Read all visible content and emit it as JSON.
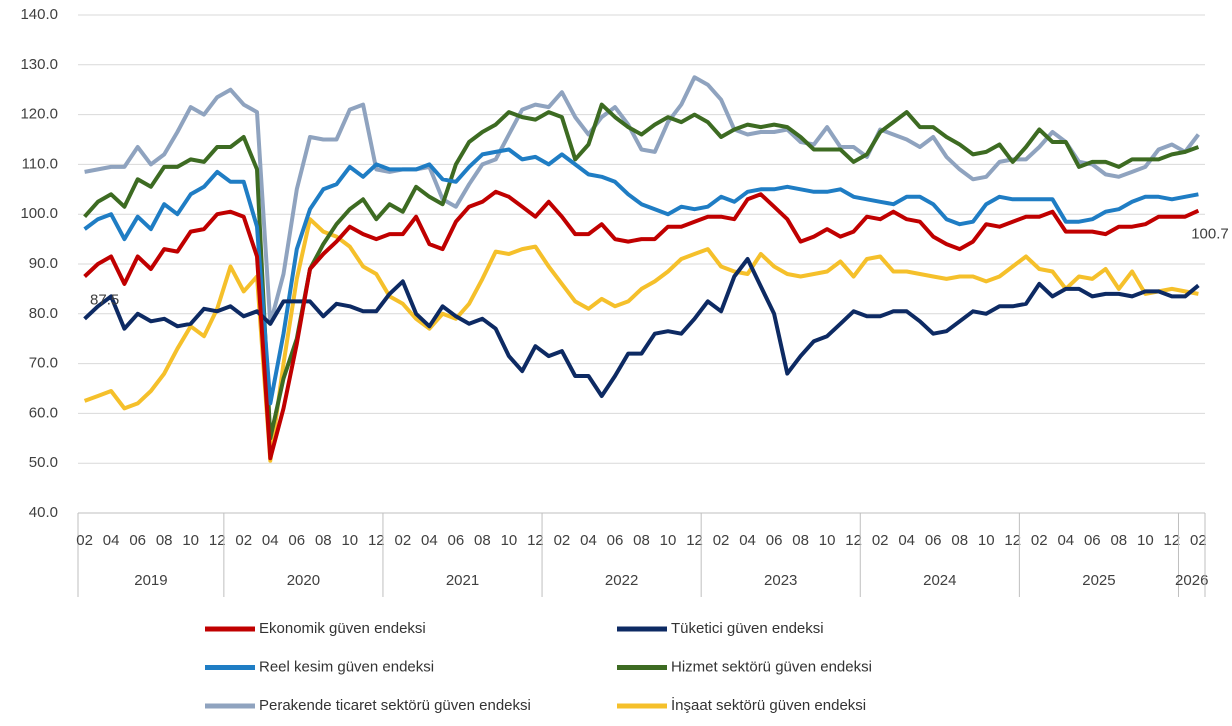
{
  "chart_data": {
    "type": "line",
    "groups": [
      {
        "name": "2019",
        "categories": [
          "02",
          null,
          "04",
          null,
          "06",
          null,
          "08",
          null,
          "10",
          null,
          "12"
        ]
      },
      {
        "name": "2020",
        "categories": [
          null,
          "02",
          null,
          "04",
          null,
          "06",
          null,
          "08",
          null,
          "10",
          null,
          "12"
        ]
      },
      {
        "name": "2021",
        "categories": [
          null,
          "02",
          null,
          "04",
          null,
          "06",
          null,
          "08",
          null,
          "10",
          null,
          "12"
        ]
      },
      {
        "name": "2022",
        "categories": [
          null,
          "02",
          null,
          "04",
          null,
          "06",
          null,
          "08",
          null,
          "10",
          null,
          "12"
        ]
      },
      {
        "name": "2023",
        "categories": [
          null,
          "02",
          null,
          "04",
          null,
          "06",
          null,
          "08",
          null,
          "10",
          null,
          "12"
        ]
      },
      {
        "name": "2024",
        "categories": [
          null,
          "02",
          null,
          "04",
          null,
          "06",
          null,
          "08",
          null,
          "10",
          null,
          "12"
        ]
      },
      {
        "name": "2025",
        "categories": [
          null,
          "02",
          null,
          "04",
          null,
          "06",
          null,
          "08",
          null,
          "10",
          null,
          "12"
        ]
      },
      {
        "name": "2026",
        "categories": [
          null,
          "02"
        ]
      }
    ],
    "ylim": [
      40,
      140
    ],
    "yticks": [
      {
        "value": 40,
        "label": "40.0"
      },
      {
        "value": 50,
        "label": "50.0"
      },
      {
        "value": 60,
        "label": "60.0"
      },
      {
        "value": 70,
        "label": "70.0"
      },
      {
        "value": 80,
        "label": "80.0"
      },
      {
        "value": 90,
        "label": "90.0"
      },
      {
        "value": 100,
        "label": "100.0"
      },
      {
        "value": 110,
        "label": "110.0"
      },
      {
        "value": 120,
        "label": "120.0"
      },
      {
        "value": 130,
        "label": "130.0"
      },
      {
        "value": 140,
        "label": "140.0"
      }
    ],
    "grid": true,
    "legend": "bottom",
    "series": [
      {
        "name": "Ekonomik güven endeksi",
        "color": "#c00000",
        "values": [
          87.5,
          90,
          91.5,
          86,
          91.5,
          89,
          93,
          92.5,
          96.5,
          97,
          100,
          100.5,
          99.5,
          91.5,
          51,
          61,
          74,
          89,
          92,
          94.5,
          97.5,
          96,
          95,
          96,
          96,
          99.5,
          94,
          93,
          98.5,
          101.5,
          102.5,
          104.5,
          103.5,
          101.5,
          99.5,
          102.5,
          99.5,
          96,
          96,
          98,
          95,
          94.5,
          95,
          95,
          97.5,
          97.5,
          98.5,
          99.5,
          99.5,
          99,
          103,
          104,
          101.5,
          99,
          94.5,
          95.5,
          97,
          95.5,
          96.5,
          99.5,
          99,
          100.5,
          99,
          98.5,
          95.5,
          94,
          93,
          94.5,
          98,
          97.5,
          98.5,
          99.5,
          99.5,
          100.5,
          96.5,
          96.5,
          96.5,
          96,
          97.5,
          97.5,
          98,
          99.5,
          99.5,
          99.5,
          100.7
        ],
        "value_labels": [
          "87.5",
          null,
          null,
          null,
          null,
          null,
          null,
          null,
          null,
          null,
          null,
          null,
          null,
          null,
          null,
          null,
          null,
          null,
          null,
          null,
          null,
          null,
          null,
          null,
          null,
          null,
          null,
          null,
          null,
          null,
          null,
          null,
          null,
          null,
          null,
          null,
          null,
          null,
          null,
          null,
          null,
          null,
          null,
          null,
          null,
          null,
          null,
          null,
          null,
          null,
          null,
          null,
          null,
          null,
          null,
          null,
          null,
          null,
          null,
          null,
          null,
          null,
          null,
          null,
          null,
          null,
          null,
          null,
          null,
          null,
          null,
          null,
          null,
          null,
          null,
          null,
          null,
          null,
          null,
          null,
          null,
          null,
          null,
          null,
          "100.7"
        ]
      },
      {
        "name": "Tüketici güven endeksi",
        "color": "#0d2a63",
        "values": [
          79,
          81.5,
          83.5,
          77,
          80,
          78.5,
          79,
          77.5,
          78,
          81,
          80.5,
          81.5,
          79.5,
          80.5,
          78,
          82.5,
          82.5,
          82.5,
          79.5,
          82,
          81.5,
          80.5,
          80.5,
          84,
          86.5,
          80,
          77.5,
          81.5,
          79.5,
          78,
          79,
          77,
          71.5,
          68.5,
          73.5,
          71.5,
          72.5,
          67.5,
          67.5,
          63.5,
          67.5,
          72,
          72,
          76,
          76.5,
          76,
          79,
          82.5,
          80.5,
          87.5,
          91,
          85.5,
          80,
          68,
          71.5,
          74.5,
          75.5,
          78,
          80.5,
          79.5,
          79.5,
          80.5,
          80.5,
          78.5,
          76,
          76.5,
          78.5,
          80.5,
          80,
          81.5,
          81.5,
          82,
          86,
          83.5,
          85,
          85,
          83.5,
          84,
          84,
          83.5,
          84.5,
          84.5,
          83.5,
          83.5,
          85.7
        ]
      },
      {
        "name": "Reel kesim güven endeksi",
        "color": "#1f7dc4",
        "values": [
          97,
          99,
          100,
          95,
          99.5,
          97,
          102,
          100,
          104,
          105.5,
          108.5,
          106.5,
          106.5,
          97.5,
          62,
          76,
          93,
          101,
          105,
          106,
          109.5,
          107.5,
          110,
          109,
          109,
          109,
          110,
          107,
          106.5,
          109.5,
          112,
          112.5,
          113,
          111,
          111.5,
          110,
          112,
          110,
          108,
          107.5,
          106.5,
          104,
          102,
          101,
          100,
          101.5,
          101,
          101.5,
          103.5,
          102.5,
          104.5,
          105,
          105,
          105.5,
          105,
          104.5,
          104.5,
          105,
          103.5,
          103,
          102.5,
          102,
          103.5,
          103.5,
          102,
          99,
          98,
          98.5,
          102,
          103.5,
          103,
          103,
          103,
          103,
          98.5,
          98.5,
          99,
          100.5,
          101,
          102.5,
          103.5,
          103.5,
          103,
          103.5,
          104
        ]
      },
      {
        "name": "Hizmet sektörü güven endeksi",
        "color": "#3d6b22",
        "values": [
          99.5,
          102.5,
          104,
          101.5,
          107,
          105.5,
          109.5,
          109.5,
          111,
          110.5,
          113.5,
          113.5,
          115.5,
          109,
          55,
          67,
          75,
          89,
          94,
          98,
          101,
          103,
          99,
          102,
          100.5,
          105.5,
          103.5,
          102,
          110,
          114.5,
          116.5,
          118,
          120.5,
          119.5,
          119,
          120.5,
          119.5,
          111,
          114,
          122,
          119.5,
          117.5,
          116,
          118,
          119.5,
          118.5,
          120,
          118.5,
          115.5,
          117,
          118,
          117.5,
          118,
          117.5,
          115.5,
          113,
          113,
          113,
          110.5,
          112,
          116.5,
          118.5,
          120.5,
          117.5,
          117.5,
          115.5,
          114,
          112,
          112.5,
          114,
          110.5,
          113.5,
          117,
          114.5,
          114.5,
          109.5,
          110.5,
          110.5,
          109.5,
          111,
          111,
          111,
          112,
          112.5,
          113.5
        ]
      },
      {
        "name": "Perakende ticaret sektörü güven endeksi",
        "color": "#8fa3bf",
        "values": [
          108.5,
          109,
          109.5,
          109.5,
          113.5,
          110,
          112,
          116.5,
          121.5,
          120,
          123.5,
          125,
          122,
          120.5,
          78,
          88,
          105,
          115.5,
          115,
          115,
          121,
          122,
          109,
          108.5,
          109,
          109,
          109.5,
          103,
          101.5,
          106,
          110,
          111,
          116,
          121,
          122,
          121.5,
          124.5,
          119.5,
          116,
          119.5,
          121.5,
          118,
          113,
          112.5,
          118.5,
          122,
          127.5,
          126,
          123,
          117,
          116,
          116.5,
          116.5,
          117,
          114.5,
          114,
          117.5,
          113.5,
          113.5,
          111.5,
          117,
          116,
          115,
          113.5,
          115.5,
          111.5,
          109,
          107,
          107.5,
          110.5,
          111,
          111,
          113.5,
          116.5,
          114.5,
          110.5,
          110,
          108,
          107.5,
          108.5,
          109.5,
          113,
          114,
          112.5,
          116
        ]
      },
      {
        "name": "İnşaat sektörü güven endeksi",
        "color": "#f5c02b",
        "values": [
          62.5,
          63.5,
          64.5,
          61,
          62,
          64.5,
          68,
          73,
          77.5,
          75.5,
          81,
          89.5,
          84.5,
          87.5,
          50.5,
          70,
          87,
          99,
          96.5,
          95.5,
          93.5,
          89.5,
          88,
          83.5,
          82,
          79,
          77,
          80,
          79,
          82,
          87,
          92.5,
          92,
          93,
          93.5,
          89.5,
          86,
          82.5,
          81,
          83,
          81.5,
          82.5,
          85,
          86.5,
          88.5,
          91,
          92,
          93,
          89.5,
          88.5,
          88,
          92,
          89.5,
          88,
          87.5,
          88,
          88.5,
          90.5,
          87.5,
          91,
          91.5,
          88.5,
          88.5,
          88,
          87.5,
          87,
          87.5,
          87.5,
          86.5,
          87.5,
          89.5,
          91.5,
          89,
          88.5,
          85,
          87.5,
          87,
          89,
          85,
          88.5,
          84,
          84.5,
          85,
          84.5,
          84
        ]
      }
    ]
  }
}
